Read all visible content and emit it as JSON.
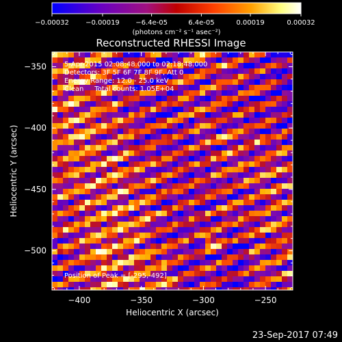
{
  "chart_data": {
    "type": "heatmap",
    "title": "Reconstructed RHESSI Image",
    "xlabel": "Heliocentric X (arcsec)",
    "ylabel": "Heliocentric Y (arcsec)",
    "xlim": [
      -422,
      -228
    ],
    "ylim": [
      -532,
      -338
    ],
    "x_ticks": [
      -400,
      -350,
      -300,
      -250
    ],
    "y_ticks": [
      -350,
      -400,
      -450,
      -500
    ],
    "colorbar": {
      "ticks": [
        {
          "value": -0.00032,
          "label": "-0.00032"
        },
        {
          "value": -0.00019,
          "label": "-0.00019"
        },
        {
          "value": -6.4e-05,
          "label": "-6.4e-05"
        },
        {
          "value": 6.4e-05,
          "label": "6.4e-05"
        },
        {
          "value": 0.00019,
          "label": "0.00019"
        },
        {
          "value": 0.00032,
          "label": "0.00032"
        }
      ],
      "range": [
        -0.00032,
        0.00032
      ],
      "unit_label": "(photons cm⁻² s⁻¹ asec⁻²)",
      "colors": [
        "#0000ff",
        "#5a00c8",
        "#8c10a0",
        "#c01020",
        "#ff5000",
        "#ffb000",
        "#ffffa0",
        "#ffffff"
      ]
    },
    "info_lines": [
      "5-Apr-2015 02:08:48.000 to 02:18:48.000",
      "Detectors: 3F 5F 6F 7F 8F 9F, Att 0",
      "Energy Range: 12.0 - 25.0 keV",
      "Clean     Total counts: 1.05E+04"
    ],
    "peak_label": "Position of Peak = [-295,-492]",
    "peak_position": [
      -295,
      -492
    ],
    "pattern_note": "diagonal striped emission pattern"
  },
  "timestamp": "23-Sep-2017 07:49"
}
